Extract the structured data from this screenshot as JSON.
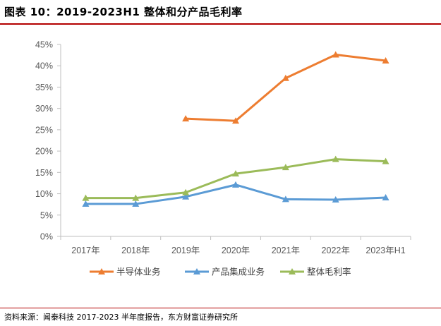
{
  "header": {
    "title": "图表 10：2019-2023H1 整体和分产品毛利率"
  },
  "footer": {
    "source": "资料来源：闻泰科技 2017-2023 半年度报告，东方财富证券研究所"
  },
  "chart_data": {
    "type": "line",
    "title": "",
    "xlabel": "",
    "ylabel": "",
    "categories": [
      "2017年",
      "2018年",
      "2019年",
      "2020年",
      "2021年",
      "2022年",
      "2023年H1"
    ],
    "ylim": [
      0,
      45
    ],
    "yticks": [
      0,
      5,
      10,
      15,
      20,
      25,
      30,
      35,
      40,
      45
    ],
    "ytick_labels": [
      "0%",
      "5%",
      "10%",
      "15%",
      "20%",
      "25%",
      "30%",
      "35%",
      "40%",
      "45%"
    ],
    "grid": false,
    "legend_position": "bottom",
    "series": [
      {
        "name": "半导体业务",
        "color": "#ed7d31",
        "marker": "triangle",
        "values": [
          null,
          null,
          27.6,
          27.1,
          37.1,
          42.6,
          41.2
        ]
      },
      {
        "name": "产品集成业务",
        "color": "#5b9bd5",
        "marker": "triangle",
        "values": [
          7.6,
          7.6,
          9.3,
          12.1,
          8.7,
          8.6,
          9.1
        ]
      },
      {
        "name": "整体毛利率",
        "color": "#9bbb59",
        "marker": "triangle",
        "values": [
          9.0,
          9.0,
          10.3,
          14.7,
          16.2,
          18.1,
          17.6
        ]
      }
    ]
  }
}
